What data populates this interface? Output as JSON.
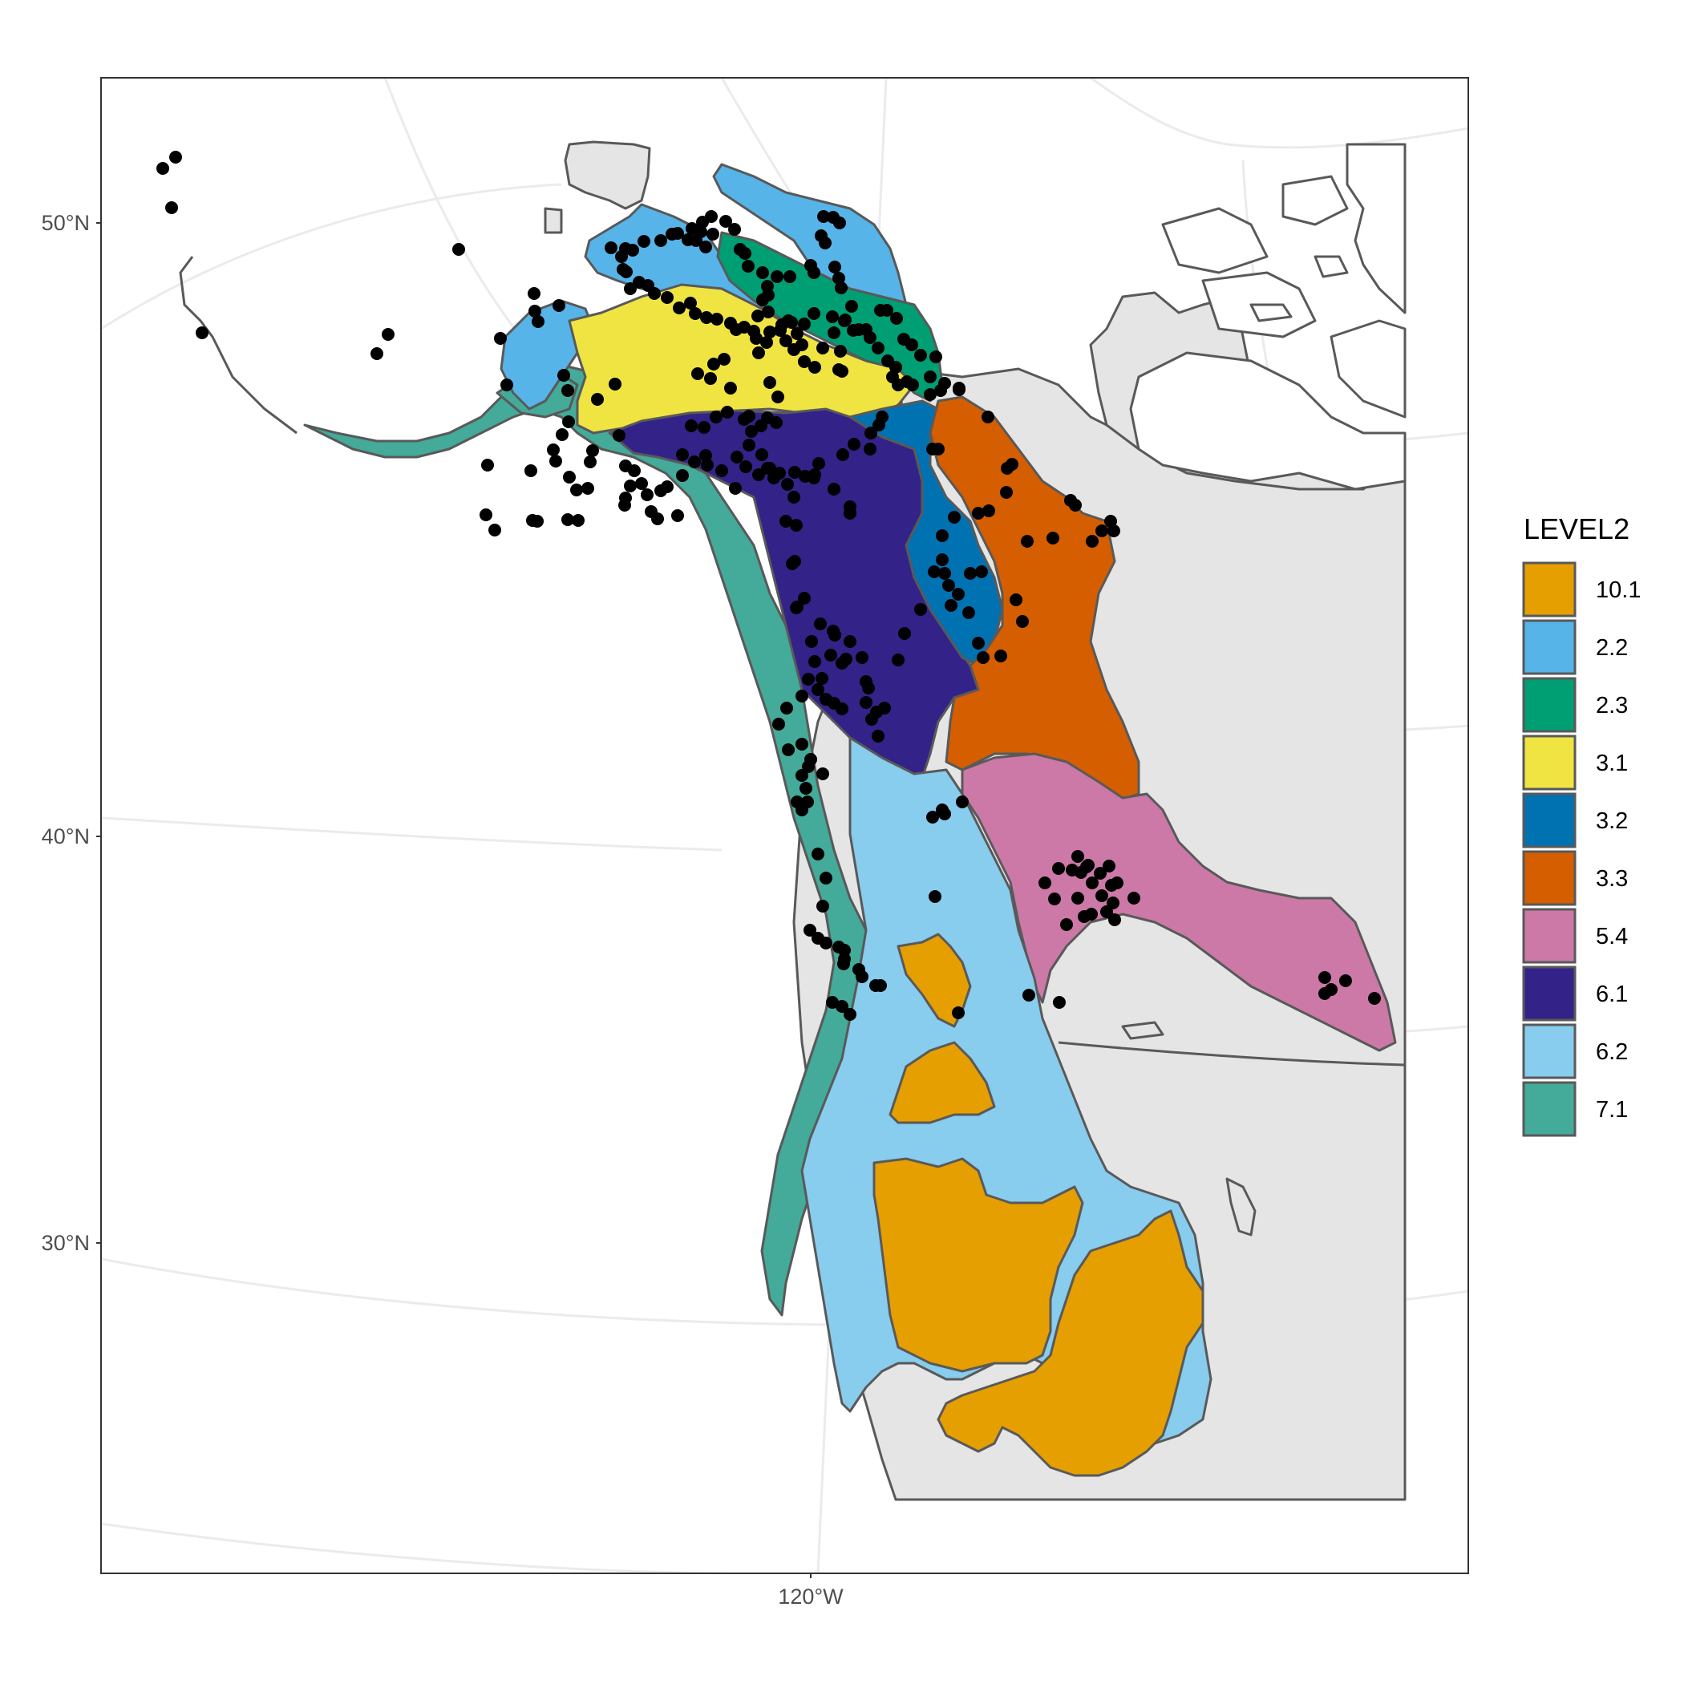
{
  "axes": {
    "y_ticks": [
      "50°N",
      "40°N",
      "30°N"
    ],
    "x_ticks": [
      "120°W"
    ]
  },
  "legend": {
    "title": "LEVEL2",
    "items": [
      {
        "label": "10.1",
        "color": "#E69F00"
      },
      {
        "label": "2.2",
        "color": "#56B4E9"
      },
      {
        "label": "2.3",
        "color": "#009E73"
      },
      {
        "label": "3.1",
        "color": "#F0E442"
      },
      {
        "label": "3.2",
        "color": "#0072B2"
      },
      {
        "label": "3.3",
        "color": "#D55E00"
      },
      {
        "label": "5.4",
        "color": "#CC79A7"
      },
      {
        "label": "6.1",
        "color": "#332288"
      },
      {
        "label": "6.2",
        "color": "#88CCEE"
      },
      {
        "label": "7.1",
        "color": "#44AA99"
      }
    ]
  },
  "colors": {
    "land": "#e5e5e5",
    "border": "#595959",
    "points": "#000000",
    "graticule": "#ebebeb"
  }
}
